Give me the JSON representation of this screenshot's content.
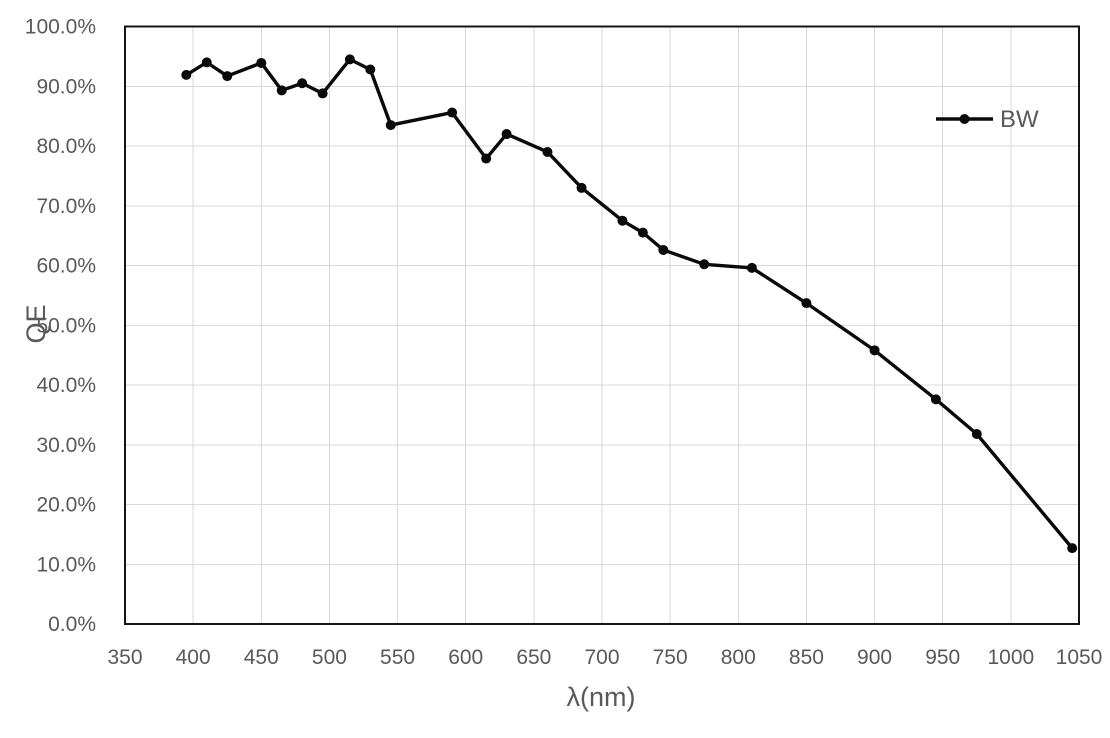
{
  "chart_data": {
    "type": "line",
    "title": "",
    "xlabel": "λ(nm)",
    "ylabel": "QE",
    "xlim": [
      350,
      1050
    ],
    "ylim": [
      0,
      100
    ],
    "grid": true,
    "legend_position": "inside-top-right",
    "x_ticks": [
      350,
      400,
      450,
      500,
      550,
      600,
      650,
      700,
      750,
      800,
      850,
      900,
      950,
      1000,
      1050
    ],
    "y_ticks": [
      {
        "value": 0,
        "label": "0.0%"
      },
      {
        "value": 10,
        "label": "10.0%"
      },
      {
        "value": 20,
        "label": "20.0%"
      },
      {
        "value": 30,
        "label": "30.0%"
      },
      {
        "value": 40,
        "label": "40.0%"
      },
      {
        "value": 50,
        "label": "50.0%"
      },
      {
        "value": 60,
        "label": "60.0%"
      },
      {
        "value": 70,
        "label": "70.0%"
      },
      {
        "value": 80,
        "label": "80.0%"
      },
      {
        "value": 90,
        "label": "90.0%"
      },
      {
        "value": 100,
        "label": "100.0%"
      }
    ],
    "series": [
      {
        "name": "BW",
        "marker": "circle",
        "x": [
          395,
          410,
          425,
          450,
          465,
          480,
          495,
          515,
          530,
          545,
          590,
          615,
          630,
          660,
          685,
          715,
          730,
          745,
          775,
          810,
          850,
          900,
          945,
          975,
          1045
        ],
        "values": [
          91.9,
          94.0,
          91.7,
          93.9,
          89.3,
          90.5,
          88.8,
          94.5,
          92.8,
          83.5,
          85.6,
          77.9,
          82.0,
          79.0,
          73.0,
          67.5,
          65.5,
          62.6,
          60.2,
          59.6,
          53.7,
          45.8,
          37.6,
          31.8,
          12.7
        ]
      }
    ],
    "colors": {
      "series": "#0a0a0a",
      "grid": "#d9d9d9",
      "plot_border": "#141414",
      "text": "#595959"
    }
  }
}
